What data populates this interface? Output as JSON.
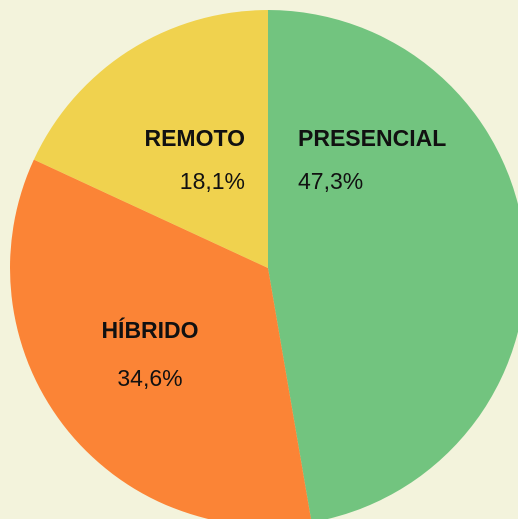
{
  "chart_data": {
    "type": "pie",
    "categories": [
      "PRESENCIAL",
      "HÍBRIDO",
      "REMOTO"
    ],
    "values": [
      47.3,
      34.6,
      18.1
    ],
    "value_labels": [
      "47,3%",
      "34,6%",
      "18,1%"
    ],
    "colors": [
      "#72c47f",
      "#fb8436",
      "#f0d24e"
    ]
  }
}
